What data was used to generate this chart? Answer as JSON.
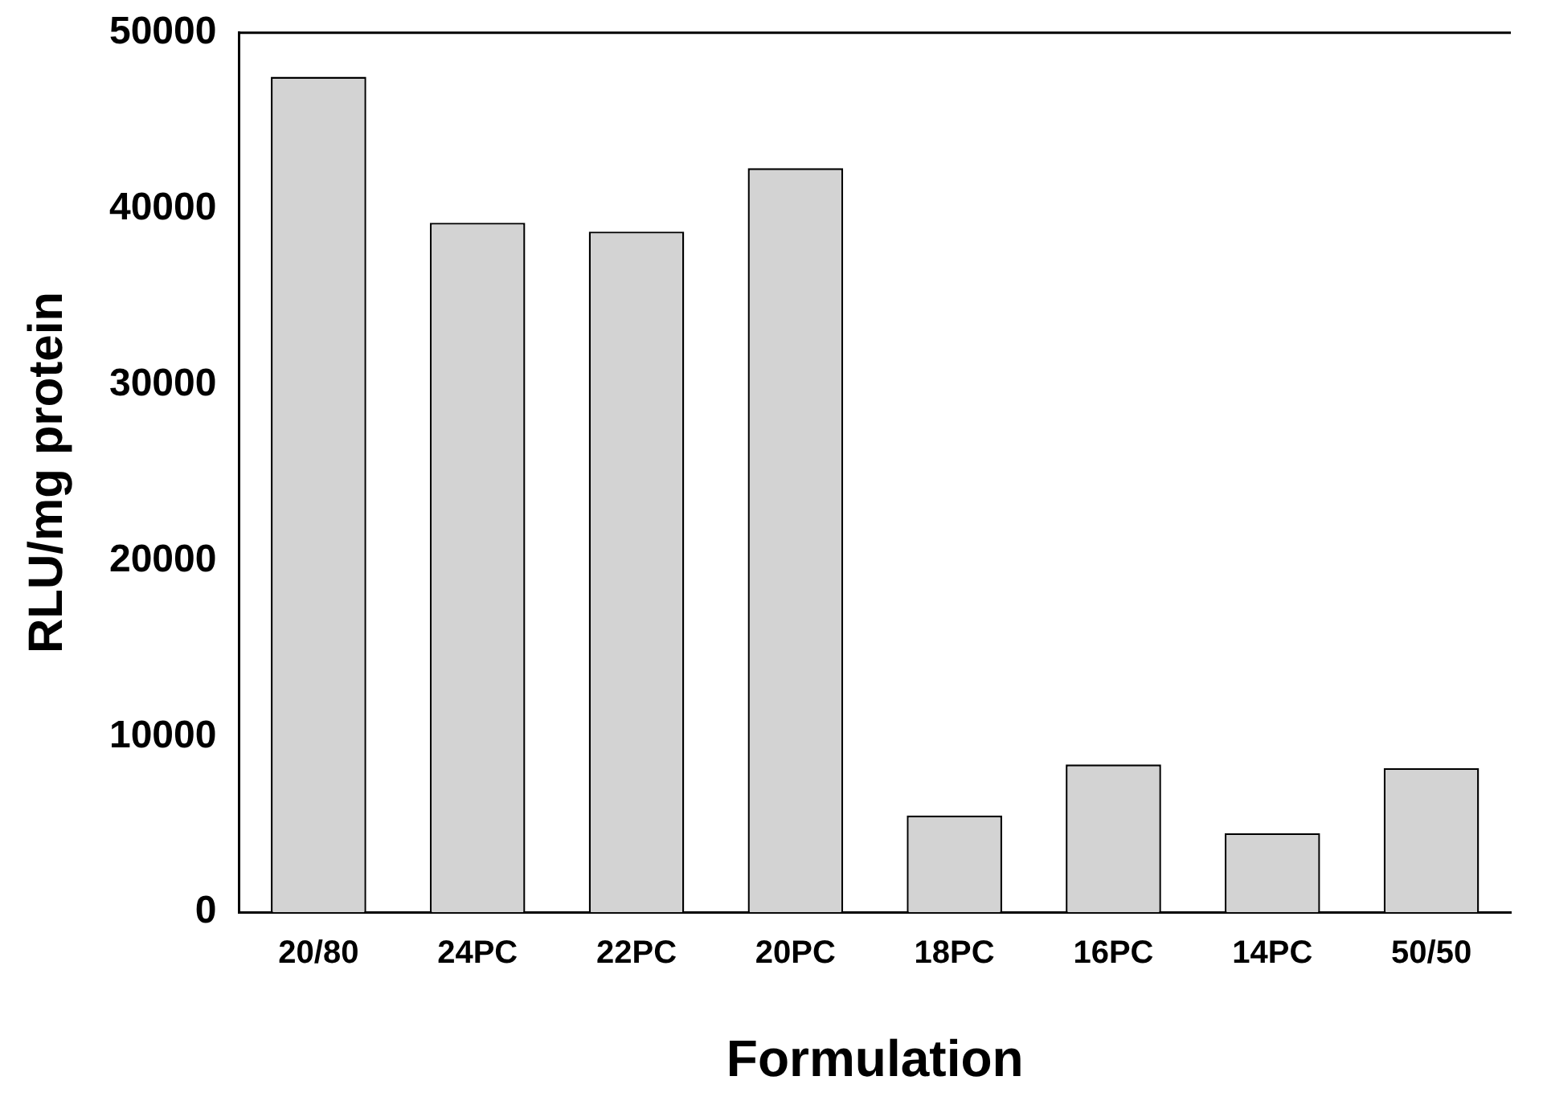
{
  "chart_data": {
    "type": "bar",
    "xlabel": "Formulation",
    "ylabel": "RLU/mg protein",
    "categories": [
      "20/80",
      "24PC",
      "22PC",
      "20PC",
      "18PC",
      "16PC",
      "14PC",
      "50/50"
    ],
    "values": [
      47500,
      39200,
      38700,
      42300,
      5500,
      8400,
      4500,
      8200
    ],
    "color": "#d3d3d3",
    "ylim": [
      0,
      50000
    ],
    "yticks": [
      0,
      10000,
      20000,
      30000,
      40000,
      50000
    ],
    "grid": false,
    "legend": false
  }
}
